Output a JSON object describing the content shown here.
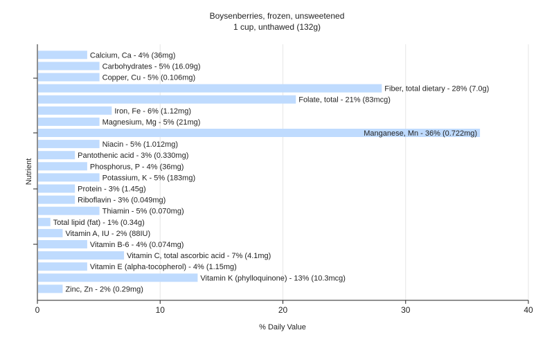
{
  "chart_data": {
    "type": "bar",
    "orientation": "horizontal",
    "title": "Boysenberries, frozen, unsweetened",
    "subtitle": "1 cup, unthawed (132g)",
    "xlabel": "% Daily Value",
    "ylabel": "Nutrient",
    "xlim": [
      0,
      40
    ],
    "xticks": [
      "0",
      "10",
      "20",
      "30",
      "40"
    ],
    "grid": true,
    "bar_color": "#bfdbfe",
    "categories": [
      "Calcium, Ca",
      "Carbohydrates",
      "Copper, Cu",
      "Fiber, total dietary",
      "Folate, total",
      "Iron, Fe",
      "Magnesium, Mg",
      "Manganese, Mn",
      "Niacin",
      "Pantothenic acid",
      "Phosphorus, P",
      "Potassium, K",
      "Protein",
      "Riboflavin",
      "Thiamin",
      "Total lipid (fat)",
      "Vitamin A, IU",
      "Vitamin B-6",
      "Vitamin C, total ascorbic acid",
      "Vitamin E (alpha-tocopherol)",
      "Vitamin K (phylloquinone)",
      "Zinc, Zn"
    ],
    "values": [
      4,
      5,
      5,
      28,
      21,
      6,
      5,
      36,
      5,
      3,
      4,
      5,
      3,
      3,
      5,
      1,
      2,
      4,
      7,
      4,
      13,
      2
    ],
    "labels": [
      "Calcium, Ca - 4% (36mg)",
      "Carbohydrates - 5% (16.09g)",
      "Copper, Cu - 5% (0.106mg)",
      "Fiber, total dietary - 28% (7.0g)",
      "Folate, total - 21% (83mcg)",
      "Iron, Fe - 6% (1.12mg)",
      "Magnesium, Mg - 5% (21mg)",
      "Manganese, Mn - 36% (0.722mg)",
      "Niacin - 5% (1.012mg)",
      "Pantothenic acid - 3% (0.330mg)",
      "Phosphorus, P - 4% (36mg)",
      "Potassium, K - 5% (183mg)",
      "Protein - 3% (1.45g)",
      "Riboflavin - 3% (0.049mg)",
      "Thiamin - 5% (0.070mg)",
      "Total lipid (fat) - 1% (0.34g)",
      "Vitamin A, IU - 2% (88IU)",
      "Vitamin B-6 - 4% (0.074mg)",
      "Vitamin C, total ascorbic acid - 7% (4.1mg)",
      "Vitamin E (alpha-tocopherol) - 4% (1.15mg)",
      "Vitamin K (phylloquinone) - 13% (10.3mcg)",
      "Zinc, Zn - 2% (0.29mg)"
    ]
  }
}
